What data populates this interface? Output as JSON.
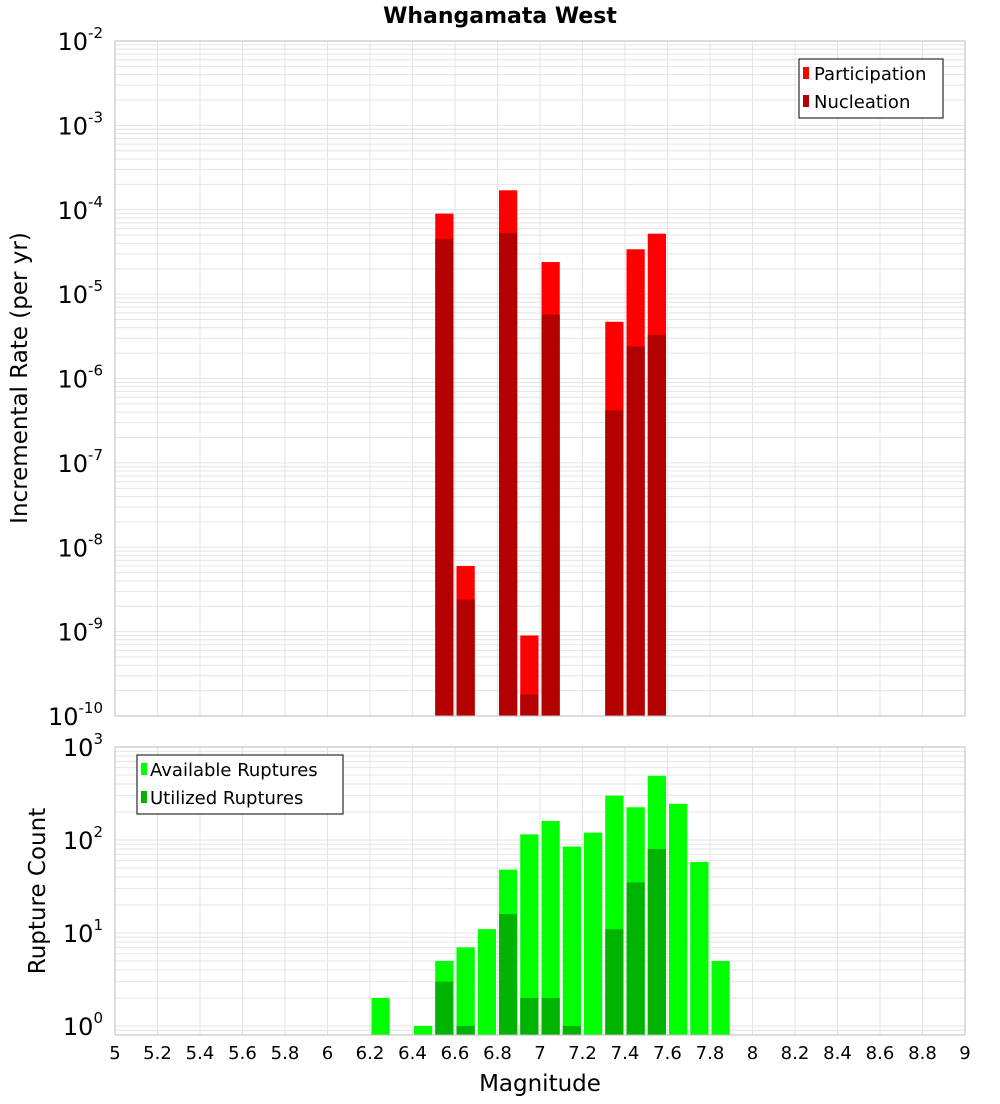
{
  "title": "Whangamata West",
  "colors": {
    "participation": "#ff0000",
    "nucleation": "#b30000",
    "available": "#00ff00",
    "utilized": "#00b300",
    "grid": "#e4e4e4",
    "frame": "#bbbbbb"
  },
  "chart_data": [
    {
      "type": "bar",
      "title": "Whangamata West",
      "xlabel": "Magnitude",
      "ylabel": "Incremental Rate (per yr)",
      "yscale": "log",
      "xlim": [
        5,
        9
      ],
      "ylim": [
        1e-10,
        0.01
      ],
      "y_ticks": [
        {
          "base": "10",
          "exp": "-10"
        },
        {
          "base": "10",
          "exp": "-9"
        },
        {
          "base": "10",
          "exp": "-8"
        },
        {
          "base": "10",
          "exp": "-7"
        },
        {
          "base": "10",
          "exp": "-6"
        },
        {
          "base": "10",
          "exp": "-5"
        },
        {
          "base": "10",
          "exp": "-4"
        },
        {
          "base": "10",
          "exp": "-3"
        },
        {
          "base": "10",
          "exp": "-2"
        }
      ],
      "legend_position": "top-right",
      "bin_width": 0.1,
      "x": [
        6.55,
        6.65,
        6.85,
        6.95,
        7.05,
        7.35,
        7.45,
        7.55
      ],
      "series": [
        {
          "name": "Participation",
          "values": [
            9e-05,
            6e-09,
            0.00017,
            9e-10,
            2.4e-05,
            4.7e-06,
            3.4e-05,
            5.2e-05
          ]
        },
        {
          "name": "Nucleation",
          "values": [
            4.5e-05,
            2.4e-09,
            5.3e-05,
            1.8e-10,
            5.7e-06,
            4.2e-07,
            2.4e-06,
            3.3e-06
          ]
        }
      ]
    },
    {
      "type": "bar",
      "xlabel": "Magnitude",
      "ylabel": "Rupture Count",
      "yscale": "log",
      "xlim": [
        5,
        9
      ],
      "ylim": [
        0.8,
        1000
      ],
      "y_ticks": [
        {
          "base": "10",
          "exp": "0"
        },
        {
          "base": "10",
          "exp": "1"
        },
        {
          "base": "10",
          "exp": "2"
        },
        {
          "base": "10",
          "exp": "3"
        }
      ],
      "x_ticks": [
        "5",
        "5.2",
        "5.4",
        "5.6",
        "5.8",
        "6",
        "6.2",
        "6.4",
        "6.6",
        "6.8",
        "7",
        "7.2",
        "7.4",
        "7.6",
        "7.8",
        "8",
        "8.2",
        "8.4",
        "8.6",
        "8.8",
        "9"
      ],
      "legend_position": "top-left",
      "bin_width": 0.1,
      "x": [
        6.25,
        6.45,
        6.55,
        6.65,
        6.75,
        6.85,
        6.95,
        7.05,
        7.15,
        7.25,
        7.35,
        7.45,
        7.55,
        7.65,
        7.75,
        7.85
      ],
      "series": [
        {
          "name": "Available Ruptures",
          "values": [
            2,
            1,
            5,
            7,
            11,
            48,
            115,
            160,
            85,
            120,
            300,
            225,
            490,
            245,
            58,
            5
          ]
        },
        {
          "name": "Utilized Ruptures",
          "values": [
            null,
            null,
            3,
            1,
            null,
            16,
            2,
            2,
            1,
            null,
            11,
            35,
            80,
            null,
            null,
            null
          ]
        }
      ]
    }
  ]
}
